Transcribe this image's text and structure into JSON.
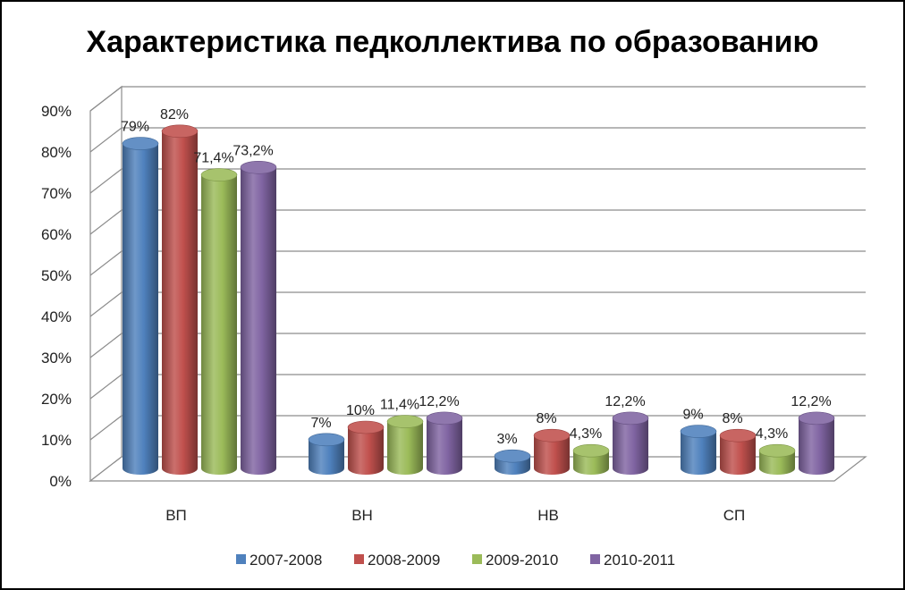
{
  "chart_data": {
    "type": "bar",
    "title": "Характеристика педколлектива по образованию",
    "xlabel": "",
    "ylabel": "",
    "categories": [
      "ВП",
      "ВН",
      "НВ",
      "СП"
    ],
    "ylim": [
      0,
      90
    ],
    "ytick_labels": [
      "0%",
      "10%",
      "20%",
      "30%",
      "40%",
      "50%",
      "60%",
      "70%",
      "80%",
      "90%"
    ],
    "grid": true,
    "legend_position": "bottom",
    "series": [
      {
        "name": "2007-2008",
        "color": "#4F81BD",
        "values": [
          79,
          7,
          3,
          9
        ],
        "labels": [
          "79%",
          "7%",
          "3%",
          "9%"
        ]
      },
      {
        "name": "2008-2009",
        "color": "#C0504D",
        "values": [
          82,
          10,
          8,
          8
        ],
        "labels": [
          "82%",
          "10%",
          "8%",
          "8%"
        ]
      },
      {
        "name": "2009-2010",
        "color": "#9BBB59",
        "values": [
          71.4,
          11.4,
          4.3,
          4.3
        ],
        "labels": [
          "71,4%",
          "11,4%",
          "4,3%",
          "4,3%"
        ]
      },
      {
        "name": "2010-2011",
        "color": "#8064A2",
        "values": [
          73.2,
          12.2,
          12.2,
          12.2
        ],
        "labels": [
          "73,2%",
          "12,2%",
          "12,2%",
          "12,2%"
        ]
      }
    ]
  }
}
